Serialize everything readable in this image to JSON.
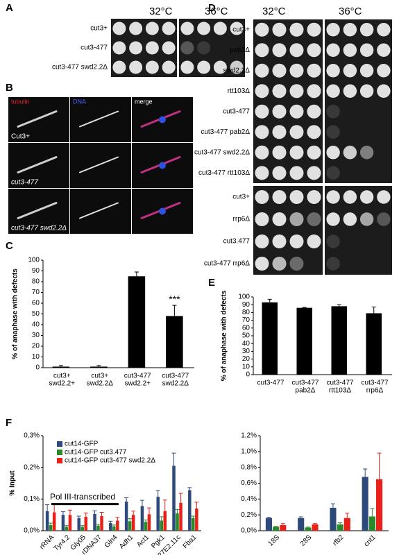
{
  "panels": {
    "A": {
      "letter": "A",
      "temps": [
        "32°C",
        "36°C"
      ],
      "rows": [
        "cut3+",
        "cut3-477",
        "cut3-477 swd2.2Δ"
      ]
    },
    "B": {
      "letter": "B",
      "channels": [
        "tubulin",
        "DNA",
        "merge"
      ],
      "rows": [
        "Cut3+",
        "cut3-477",
        "cut3-477 swd2.2Δ"
      ]
    },
    "D": {
      "letter": "D",
      "temps": [
        "32°C",
        "36°C"
      ],
      "rows_top": [
        "cut3+",
        "pab2Δ",
        "swd2.2Δ",
        "rtt103Δ",
        "cut3-477",
        "cut3-477 pab2Δ",
        "cut3-477 swd2.2Δ",
        "cut3-477 rtt103Δ"
      ],
      "rows_bottom": [
        "cut3+",
        "rrp6Δ",
        "cut3.477",
        "cut3-477 rrp6Δ"
      ]
    }
  },
  "chart_data": [
    {
      "type": "bar",
      "panel": "C",
      "ylabel": "% of anaphase with defects",
      "categories": [
        [
          "cut3+",
          "swd2.2+"
        ],
        [
          "cut3+",
          "swd2.2Δ"
        ],
        [
          "cut3-477",
          "swd2.2+"
        ],
        [
          "cut3-477",
          "swd2.2Δ"
        ]
      ],
      "values": [
        1,
        1,
        85,
        48
      ],
      "errors": [
        1,
        1,
        4,
        10
      ],
      "color": "#000000",
      "annotation": "***",
      "ylim": [
        0,
        100
      ],
      "yticks": [
        0,
        10,
        20,
        30,
        40,
        50,
        60,
        70,
        80,
        90,
        100
      ]
    },
    {
      "type": "bar",
      "panel": "E",
      "ylabel": "% of anaphase with defects",
      "categories": [
        [
          "cut3-477"
        ],
        [
          "cut3-477",
          "pab2Δ"
        ],
        [
          "cut3-477",
          "rtt103Δ"
        ],
        [
          "cut3-477",
          "rrp6Δ"
        ]
      ],
      "values": [
        93,
        86,
        88,
        79
      ],
      "errors": [
        4,
        0.5,
        2,
        8
      ],
      "color": "#000000",
      "ylim": [
        0,
        100
      ],
      "yticks": [
        0,
        10,
        20,
        30,
        40,
        50,
        60,
        70,
        80,
        90,
        100
      ]
    },
    {
      "type": "bar",
      "panel": "F",
      "ylabel": "% Input",
      "annotation": "Pol III-transcribed",
      "categories": [
        "rRNA",
        "Tyr4.2",
        "Gly05",
        "rDNA37",
        "Gln4",
        "Adh1",
        "Act1",
        "Pgk1",
        "27E2.11c",
        "Fba1"
      ],
      "series": [
        {
          "name": "cut14-GFP",
          "color": "#2e4a7a",
          "values": [
            0.062,
            0.05,
            0.04,
            0.053,
            0.024,
            0.092,
            0.078,
            0.107,
            0.205,
            0.128
          ],
          "errors": [
            0.02,
            0.01,
            0.006,
            0.01,
            0.006,
            0.012,
            0.018,
            0.02,
            0.04,
            0.008
          ]
        },
        {
          "name": "cut14-GFP cut3.477",
          "color": "#2a8a2a",
          "values": [
            0.018,
            0.012,
            0.012,
            0.016,
            0.014,
            0.03,
            0.028,
            0.032,
            0.055,
            0.04
          ],
          "errors": [
            0.006,
            0.004,
            0.004,
            0.004,
            0.004,
            0.008,
            0.006,
            0.012,
            0.012,
            0.006
          ]
        },
        {
          "name": "cut14-GFP cut3-477 swd2.2Δ",
          "color": "#e8201a",
          "values": [
            0.058,
            0.05,
            0.044,
            0.046,
            0.032,
            0.05,
            0.052,
            0.062,
            0.088,
            0.07
          ],
          "errors": [
            0.025,
            0.015,
            0.012,
            0.012,
            0.01,
            0.012,
            0.02,
            0.035,
            0.03,
            0.02
          ]
        }
      ],
      "ylim": [
        0,
        0.3
      ],
      "yticks": [
        {
          "value": 0,
          "label": "0,0%"
        },
        {
          "value": 0.1,
          "label": "0,1%"
        },
        {
          "value": 0.2,
          "label": "0,2%"
        },
        {
          "value": 0.3,
          "label": "0,3%"
        }
      ]
    },
    {
      "type": "bar",
      "categories": [
        "18S",
        "28S",
        "rfb2",
        "cnt1"
      ],
      "series": [
        {
          "color": "#2e4a7a",
          "values": [
            0.16,
            0.16,
            0.29,
            0.68
          ],
          "errors": [
            0.01,
            0.015,
            0.05,
            0.1
          ]
        },
        {
          "color": "#2a8a2a",
          "values": [
            0.05,
            0.04,
            0.08,
            0.18
          ],
          "errors": [
            0.005,
            0.006,
            0.02,
            0.1
          ]
        },
        {
          "color": "#e8201a",
          "values": [
            0.07,
            0.08,
            0.16,
            0.65
          ],
          "errors": [
            0.02,
            0.01,
            0.06,
            0.33
          ]
        }
      ],
      "ylim": [
        0,
        1.2
      ],
      "yticks": [
        {
          "value": 0,
          "label": "0,0%"
        },
        {
          "value": 0.2,
          "label": "0,2%"
        },
        {
          "value": 0.4,
          "label": "0,4%"
        },
        {
          "value": 0.6,
          "label": "0,6%"
        },
        {
          "value": 0.8,
          "label": "0,8%"
        },
        {
          "value": 1.0,
          "label": "1,0%"
        },
        {
          "value": 1.2,
          "label": "1,2%"
        }
      ]
    }
  ]
}
